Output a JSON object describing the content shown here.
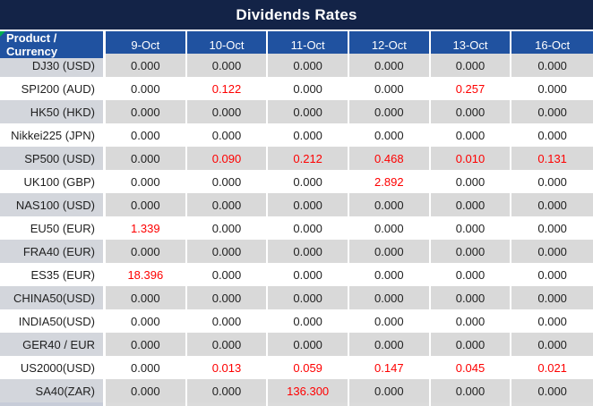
{
  "title": "Dividends Rates",
  "columns": [
    "Product / Currency",
    "9-Oct",
    "10-Oct",
    "11-Oct",
    "12-Oct",
    "13-Oct",
    "16-Oct"
  ],
  "rows": [
    {
      "product": "DJ30 (USD)",
      "values": [
        "0.000",
        "0.000",
        "0.000",
        "0.000",
        "0.000",
        "0.000"
      ],
      "red": [
        false,
        false,
        false,
        false,
        false,
        false
      ]
    },
    {
      "product": "SPI200 (AUD)",
      "values": [
        "0.000",
        "0.122",
        "0.000",
        "0.000",
        "0.257",
        "0.000"
      ],
      "red": [
        false,
        true,
        false,
        false,
        true,
        false
      ]
    },
    {
      "product": "HK50 (HKD)",
      "values": [
        "0.000",
        "0.000",
        "0.000",
        "0.000",
        "0.000",
        "0.000"
      ],
      "red": [
        false,
        false,
        false,
        false,
        false,
        false
      ]
    },
    {
      "product": "Nikkei225 (JPN)",
      "values": [
        "0.000",
        "0.000",
        "0.000",
        "0.000",
        "0.000",
        "0.000"
      ],
      "red": [
        false,
        false,
        false,
        false,
        false,
        false
      ]
    },
    {
      "product": "SP500 (USD)",
      "values": [
        "0.000",
        "0.090",
        "0.212",
        "0.468",
        "0.010",
        "0.131"
      ],
      "red": [
        false,
        true,
        true,
        true,
        true,
        true
      ]
    },
    {
      "product": "UK100 (GBP)",
      "values": [
        "0.000",
        "0.000",
        "0.000",
        "2.892",
        "0.000",
        "0.000"
      ],
      "red": [
        false,
        false,
        false,
        true,
        false,
        false
      ]
    },
    {
      "product": "NAS100 (USD)",
      "values": [
        "0.000",
        "0.000",
        "0.000",
        "0.000",
        "0.000",
        "0.000"
      ],
      "red": [
        false,
        false,
        false,
        false,
        false,
        false
      ]
    },
    {
      "product": "EU50 (EUR)",
      "values": [
        "1.339",
        "0.000",
        "0.000",
        "0.000",
        "0.000",
        "0.000"
      ],
      "red": [
        true,
        false,
        false,
        false,
        false,
        false
      ]
    },
    {
      "product": "FRA40 (EUR)",
      "values": [
        "0.000",
        "0.000",
        "0.000",
        "0.000",
        "0.000",
        "0.000"
      ],
      "red": [
        false,
        false,
        false,
        false,
        false,
        false
      ]
    },
    {
      "product": "ES35 (EUR)",
      "values": [
        "18.396",
        "0.000",
        "0.000",
        "0.000",
        "0.000",
        "0.000"
      ],
      "red": [
        true,
        false,
        false,
        false,
        false,
        false
      ]
    },
    {
      "product": "CHINA50(USD)",
      "values": [
        "0.000",
        "0.000",
        "0.000",
        "0.000",
        "0.000",
        "0.000"
      ],
      "red": [
        false,
        false,
        false,
        false,
        false,
        false
      ]
    },
    {
      "product": "INDIA50(USD)",
      "values": [
        "0.000",
        "0.000",
        "0.000",
        "0.000",
        "0.000",
        "0.000"
      ],
      "red": [
        false,
        false,
        false,
        false,
        false,
        false
      ]
    },
    {
      "product": "GER40 / EUR",
      "values": [
        "0.000",
        "0.000",
        "0.000",
        "0.000",
        "0.000",
        "0.000"
      ],
      "red": [
        false,
        false,
        false,
        false,
        false,
        false
      ]
    },
    {
      "product": "US2000(USD)",
      "values": [
        "0.000",
        "0.013",
        "0.059",
        "0.147",
        "0.045",
        "0.021"
      ],
      "red": [
        false,
        true,
        true,
        true,
        true,
        true
      ]
    },
    {
      "product": "SA40(ZAR)",
      "values": [
        "0.000",
        "0.000",
        "136.300",
        "0.000",
        "0.000",
        "0.000"
      ],
      "red": [
        false,
        false,
        true,
        false,
        false,
        false
      ]
    }
  ],
  "colors": {
    "title_bg": "#132347",
    "header_bg": "#2052A0",
    "stripe_bg": "#D9D9D9",
    "stripe_product_bg": "#D3D6DC",
    "value_black": "#1F1F1F",
    "value_red": "#FE0000",
    "marker_green": "#00B050",
    "bottom_strip_bg": "#DBDBDB",
    "bottom_strip_product_bg": "#C7CCD8"
  }
}
